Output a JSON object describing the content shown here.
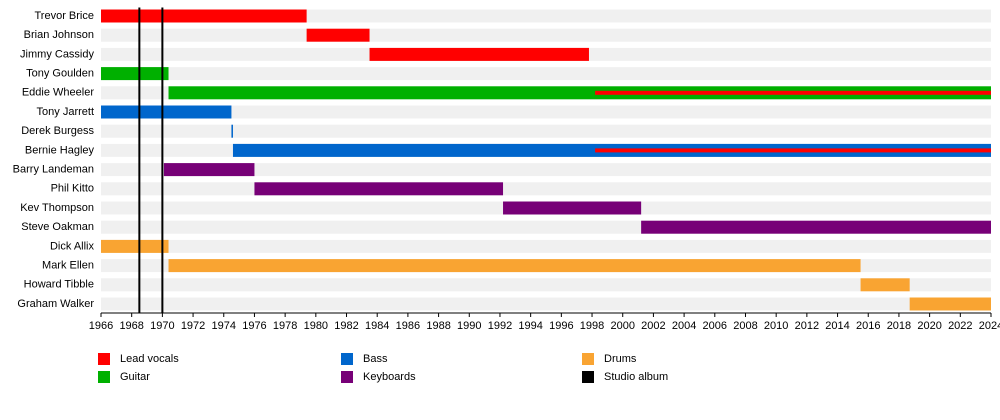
{
  "chart_data": {
    "type": "timeline",
    "categories": [
      "Trevor Brice",
      "Brian Johnson",
      "Jimmy Cassidy",
      "Tony Goulden",
      "Eddie Wheeler",
      "Tony Jarrett",
      "Derek Burgess",
      "Bernie Hagley",
      "Barry Landeman",
      "Phil Kitto",
      "Kev Thompson",
      "Steve Oakman",
      "Dick Allix",
      "Mark Ellen",
      "Howard Tibble",
      "Graham Walker"
    ],
    "series": [
      {
        "name": "Lead vocals",
        "color": "#ff0000",
        "values": [
          [
            1966,
            1979.4
          ],
          [
            1979.4,
            1983.5
          ],
          [
            1983.5,
            1997.8
          ],
          null,
          [
            1998.2,
            2024
          ],
          null,
          null,
          [
            1998.2,
            2024
          ],
          null,
          null,
          null,
          null,
          null,
          null,
          null,
          null
        ]
      },
      {
        "name": "Guitar",
        "color": "#00b000",
        "values": [
          null,
          null,
          null,
          [
            1966,
            1970.4
          ],
          [
            1970.4,
            2024
          ],
          null,
          null,
          null,
          null,
          null,
          null,
          null,
          null,
          null,
          null,
          null
        ]
      },
      {
        "name": "Bass",
        "color": "#0066cc",
        "values": [
          null,
          null,
          null,
          null,
          null,
          [
            1966,
            1974.5
          ],
          [
            1974.5,
            1974.6
          ],
          [
            1974.6,
            2024
          ],
          null,
          null,
          null,
          null,
          null,
          null,
          null,
          null
        ]
      },
      {
        "name": "Keyboards",
        "color": "#770077",
        "values": [
          null,
          null,
          null,
          null,
          null,
          null,
          null,
          null,
          [
            1970.1,
            1976
          ],
          [
            1976,
            1992.2
          ],
          [
            1992.2,
            2001.2
          ],
          [
            2001.2,
            2024
          ],
          null,
          null,
          null,
          null
        ]
      },
      {
        "name": "Drums",
        "color": "#f9a432",
        "values": [
          null,
          null,
          null,
          null,
          null,
          null,
          null,
          null,
          null,
          null,
          null,
          null,
          [
            1966,
            1970.4
          ],
          [
            1970.4,
            2015.5
          ],
          [
            2015.5,
            2018.7
          ],
          [
            2018.7,
            2024
          ]
        ]
      }
    ],
    "albums": {
      "name": "Studio album",
      "color": "#000000",
      "x": [
        1968.5,
        1970
      ]
    },
    "xlim": [
      1966,
      2024
    ],
    "xticks": [
      1966,
      1968,
      1970,
      1972,
      1974,
      1976,
      1978,
      1980,
      1982,
      1984,
      1986,
      1988,
      1990,
      1992,
      1994,
      1996,
      1998,
      2000,
      2002,
      2004,
      2006,
      2008,
      2010,
      2012,
      2014,
      2016,
      2018,
      2020,
      2022,
      2024
    ]
  }
}
